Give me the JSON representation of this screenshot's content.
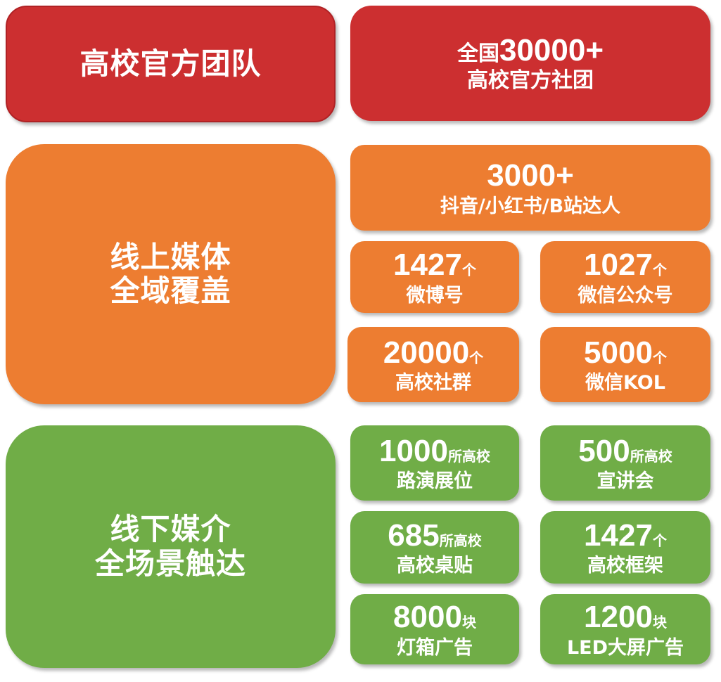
{
  "colors": {
    "red": "#CC2F30",
    "orange": "#ED7D31",
    "green": "#70AD47"
  },
  "sections": {
    "team": {
      "title": "高校官方团队",
      "card": {
        "prefix": "全国",
        "number": "30000+",
        "label": "高校官方社团"
      }
    },
    "online": {
      "title_line1": "线上媒体",
      "title_line2": "全域覆盖",
      "cards": [
        {
          "number": "3000+",
          "unit": "",
          "label": "抖音/小红书/B站达人"
        },
        {
          "number": "1427",
          "unit": "个",
          "label": "微博号"
        },
        {
          "number": "1027",
          "unit": "个",
          "label": "微信公众号"
        },
        {
          "number": "20000",
          "unit": "个",
          "label": "高校社群"
        },
        {
          "number": "5000",
          "unit": "个",
          "label": "微信KOL"
        }
      ]
    },
    "offline": {
      "title_line1": "线下媒介",
      "title_line2": "全场景触达",
      "cards": [
        {
          "number": "1000",
          "unit": "所高校",
          "label": "路演展位"
        },
        {
          "number": "500",
          "unit": "所高校",
          "label": "宣讲会"
        },
        {
          "number": "685",
          "unit": "所高校",
          "label": "高校桌贴"
        },
        {
          "number": "1427",
          "unit": "个",
          "label": "高校框架"
        },
        {
          "number": "8000",
          "unit": "块",
          "label": "灯箱广告"
        },
        {
          "number": "1200",
          "unit": "块",
          "label": "LED大屏广告"
        }
      ]
    }
  }
}
